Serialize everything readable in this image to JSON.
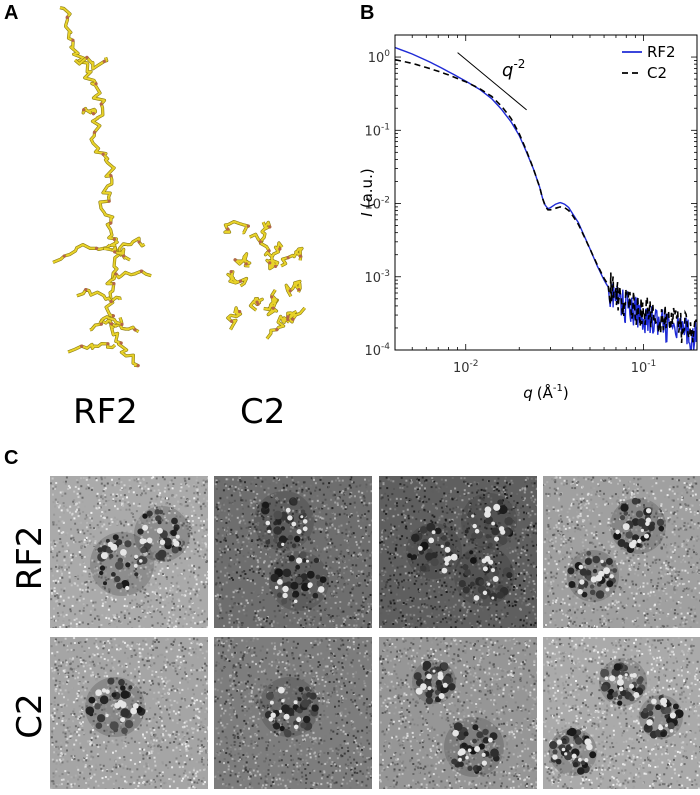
{
  "panels": {
    "a": "A",
    "b": "B",
    "c": "C"
  },
  "molecules": {
    "labels": [
      "RF2",
      "C2"
    ],
    "colors": {
      "strand": "#e8d22a",
      "accent": "#b5654a"
    }
  },
  "micrographs": {
    "rows": [
      "RF2",
      "C2"
    ]
  },
  "chart_data": {
    "type": "line",
    "xscale": "log",
    "yscale": "log",
    "xlim": [
      0.004,
      0.2
    ],
    "ylim": [
      0.0001,
      2
    ],
    "xlabel_var": "q",
    "xlabel_unit": "(Å",
    "xlabel_exp": "-1",
    "xlabel_close": ")",
    "ylabel_var": "I",
    "ylabel_unit": "(a.u.)",
    "xticks": [
      {
        "value": 0.01,
        "base": "10",
        "exp": "-2"
      },
      {
        "value": 0.1,
        "base": "10",
        "exp": "-1"
      }
    ],
    "yticks": [
      {
        "value": 1,
        "base": "10",
        "exp": "0"
      },
      {
        "value": 0.1,
        "base": "10",
        "exp": "-1"
      },
      {
        "value": 0.01,
        "base": "10",
        "exp": "-2"
      },
      {
        "value": 0.001,
        "base": "10",
        "exp": "-3"
      },
      {
        "value": 0.0001,
        "base": "10",
        "exp": "-4"
      }
    ],
    "annotation": {
      "base": "q",
      "exp": "-2",
      "line_from": [
        0.009,
        1.15
      ],
      "line_to": [
        0.022,
        0.19
      ]
    },
    "legend_position": "top-right",
    "series": [
      {
        "name": "RF2",
        "color": "#1f2bd6",
        "style": "solid",
        "x": [
          0.004,
          0.005,
          0.006,
          0.007,
          0.008,
          0.01,
          0.012,
          0.014,
          0.016,
          0.018,
          0.02,
          0.022,
          0.024,
          0.026,
          0.027,
          0.028,
          0.029,
          0.03,
          0.032,
          0.034,
          0.036,
          0.038,
          0.04,
          0.043,
          0.046,
          0.05,
          0.055,
          0.06,
          0.065,
          0.07,
          0.075,
          0.08,
          0.09,
          0.1,
          0.11,
          0.125,
          0.14,
          0.16,
          0.18,
          0.2
        ],
        "y": [
          1.35,
          1.1,
          0.9,
          0.75,
          0.63,
          0.47,
          0.36,
          0.27,
          0.19,
          0.13,
          0.085,
          0.05,
          0.03,
          0.017,
          0.012,
          0.0095,
          0.0085,
          0.0088,
          0.0098,
          0.0103,
          0.0098,
          0.0088,
          0.0072,
          0.0055,
          0.0038,
          0.0024,
          0.0014,
          0.0009,
          0.00065,
          0.0005,
          0.00042,
          0.00038,
          0.00032,
          0.00029,
          0.00025,
          0.00022,
          0.0002,
          0.00018,
          0.00016,
          0.00015
        ]
      },
      {
        "name": "C2",
        "color": "#000000",
        "style": "dashed",
        "x": [
          0.004,
          0.005,
          0.006,
          0.007,
          0.008,
          0.01,
          0.012,
          0.014,
          0.016,
          0.018,
          0.02,
          0.022,
          0.024,
          0.026,
          0.027,
          0.028,
          0.029,
          0.03,
          0.032,
          0.034,
          0.036,
          0.038,
          0.04,
          0.043,
          0.046,
          0.05,
          0.055,
          0.06,
          0.065,
          0.07,
          0.075,
          0.08,
          0.09,
          0.1,
          0.11,
          0.125,
          0.14,
          0.16,
          0.18,
          0.2
        ],
        "y": [
          0.92,
          0.82,
          0.72,
          0.64,
          0.57,
          0.46,
          0.37,
          0.29,
          0.21,
          0.145,
          0.09,
          0.052,
          0.03,
          0.017,
          0.012,
          0.0092,
          0.0082,
          0.0082,
          0.0086,
          0.009,
          0.0088,
          0.008,
          0.0068,
          0.0052,
          0.0037,
          0.0024,
          0.00145,
          0.00095,
          0.0007,
          0.00056,
          0.00048,
          0.00043,
          0.00037,
          0.00034,
          0.0003,
          0.00027,
          0.00024,
          0.00021,
          0.00019,
          0.00017
        ]
      }
    ]
  }
}
